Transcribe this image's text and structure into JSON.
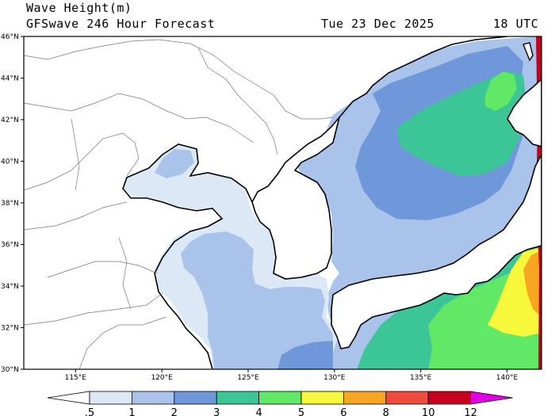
{
  "header": {
    "title": "Wave Height(m)",
    "subtitle": "GFSwave 246 Hour Forecast",
    "date": "Tue 23 Dec 2025",
    "time": "18 UTC"
  },
  "map": {
    "lon_range": [
      112,
      142
    ],
    "lat_range": [
      30,
      46
    ],
    "lat_ticks": [
      "30°N",
      "32°N",
      "34°N",
      "36°N",
      "38°N",
      "40°N",
      "42°N",
      "44°N",
      "46°N"
    ],
    "lon_ticks": [
      "115°E",
      "120°E",
      "125°E",
      "130°E",
      "135°E",
      "140°E"
    ],
    "regions": [
      "Bohai Sea",
      "Yellow Sea",
      "East China Sea",
      "Korean Peninsula",
      "Sea of Japan",
      "Japan",
      "Pacific Ocean"
    ]
  },
  "colorbar": {
    "labels": [
      ".5",
      "1",
      "2",
      "3",
      "4",
      "5",
      "6",
      "8",
      "10",
      "12"
    ],
    "colors": [
      "#ffffff",
      "#dde8f6",
      "#a9c3ea",
      "#6f98db",
      "#3cc596",
      "#61e867",
      "#f7f73b",
      "#f6a623",
      "#ef4b3c",
      "#c8001e",
      "#e000e0"
    ]
  }
}
